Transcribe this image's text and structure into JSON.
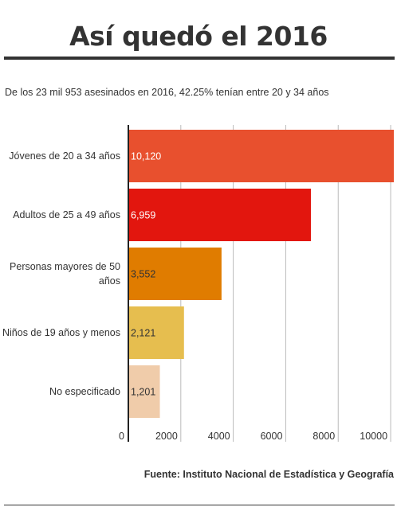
{
  "chart_data": {
    "type": "bar",
    "orientation": "horizontal",
    "title": "Así quedó el 2016",
    "subtitle": "De los 23 mil 953 asesinados en 2016, 42.25% tenían entre 20 y 34 años",
    "categories": [
      "Jóvenes de 20 a 34 años",
      "Adultos de 25 a 49 años",
      "Personas mayores de 50 años",
      "Niños de 19 años y menos",
      "No especificado"
    ],
    "values": [
      10120,
      6959,
      3552,
      2121,
      1201
    ],
    "value_labels": [
      "10,120",
      "6,959",
      "3,552",
      "2,121",
      "1,201"
    ],
    "colors": [
      "#e8502e",
      "#e2160e",
      "#e07c00",
      "#e6be4f",
      "#f0ccaa"
    ],
    "xlim": [
      0,
      10120
    ],
    "xticks": [
      0,
      2000,
      4000,
      6000,
      8000,
      10000
    ],
    "xtick_labels": [
      "0",
      "2000",
      "4000",
      "6000",
      "8000",
      "10000"
    ],
    "grid": true,
    "source": "Fuente: Instituto Nacional de Estadística y Geografía"
  }
}
